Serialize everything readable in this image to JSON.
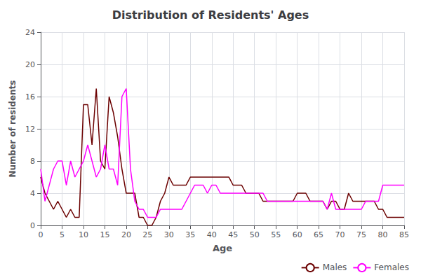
{
  "chart_data": {
    "type": "line",
    "title": "Distribution of Residents' Ages",
    "x_label": "Age",
    "y_label": "Number of residents",
    "x": [
      0,
      1,
      2,
      3,
      4,
      5,
      6,
      7,
      8,
      9,
      10,
      11,
      12,
      13,
      14,
      15,
      16,
      17,
      18,
      19,
      20,
      21,
      22,
      23,
      24,
      25,
      26,
      27,
      28,
      29,
      30,
      31,
      32,
      33,
      34,
      35,
      36,
      37,
      38,
      39,
      40,
      41,
      42,
      43,
      44,
      45,
      46,
      47,
      48,
      49,
      50,
      51,
      52,
      53,
      54,
      55,
      56,
      57,
      58,
      59,
      60,
      61,
      62,
      63,
      64,
      65,
      66,
      67,
      68,
      69,
      70,
      71,
      72,
      73,
      74,
      75,
      76,
      77,
      78,
      79,
      80,
      81,
      82,
      83,
      84,
      85
    ],
    "series": [
      {
        "name": "Males",
        "color": "#6b0000",
        "values": [
          6,
          4,
          3,
          2,
          3,
          2,
          1,
          2,
          1,
          1,
          15,
          15,
          10,
          17,
          8,
          7,
          16,
          14,
          11,
          7,
          4,
          4,
          4,
          1,
          1,
          0,
          0,
          1,
          3,
          4,
          6,
          5,
          5,
          5,
          5,
          6,
          6,
          6,
          6,
          6,
          6,
          6,
          6,
          6,
          6,
          5,
          5,
          5,
          4,
          4,
          4,
          4,
          3,
          3,
          3,
          3,
          3,
          3,
          3,
          3,
          4,
          4,
          4,
          3,
          3,
          3,
          3,
          2,
          3,
          3,
          2,
          2,
          4,
          3,
          3,
          3,
          3,
          3,
          3,
          2,
          2,
          1,
          1,
          1,
          1,
          1
        ]
      },
      {
        "name": "Females",
        "color": "#ff00ff",
        "values": [
          7,
          3,
          5,
          7,
          8,
          8,
          5,
          8,
          6,
          7,
          8,
          10,
          8,
          6,
          7,
          10,
          7,
          7,
          5,
          16,
          17,
          7,
          3,
          2,
          2,
          1,
          1,
          1,
          2,
          2,
          2,
          2,
          2,
          2,
          3,
          4,
          5,
          5,
          5,
          4,
          5,
          5,
          4,
          4,
          4,
          4,
          4,
          4,
          4,
          4,
          4,
          4,
          4,
          3,
          3,
          3,
          3,
          3,
          3,
          3,
          3,
          3,
          3,
          3,
          3,
          3,
          3,
          2,
          4,
          2,
          2,
          2,
          2,
          2,
          2,
          2,
          3,
          3,
          3,
          3,
          5,
          5,
          5,
          5,
          5,
          5
        ]
      }
    ],
    "xlim": [
      0,
      85
    ],
    "ylim": [
      0,
      24
    ],
    "xticks": [
      0,
      5,
      10,
      15,
      20,
      25,
      30,
      35,
      40,
      45,
      50,
      55,
      60,
      65,
      70,
      75,
      80,
      85
    ],
    "yticks": [
      0,
      4,
      8,
      12,
      16,
      20,
      24
    ],
    "grid": true,
    "legend": "lower right"
  }
}
